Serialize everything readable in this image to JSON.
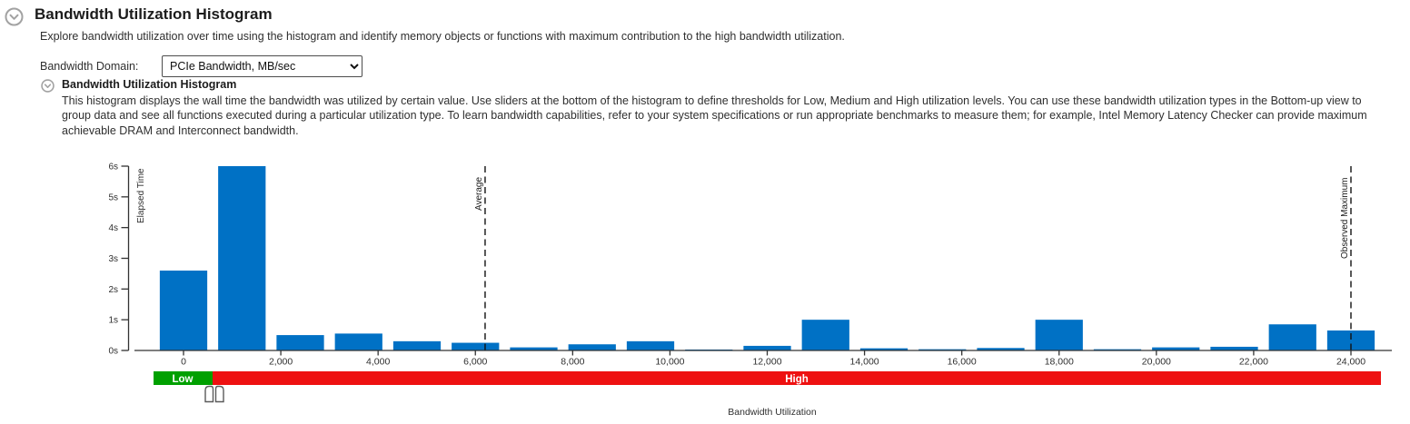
{
  "header": {
    "title": "Bandwidth Utilization Histogram",
    "subtitle": "Explore bandwidth utilization over time using the histogram and identify memory objects or functions with maximum contribution to the high bandwidth utilization."
  },
  "controls": {
    "bandwidth_domain_label": "Bandwidth Domain:",
    "bandwidth_domain_value": "PCIe Bandwidth, MB/sec"
  },
  "section": {
    "title": "Bandwidth Utilization Histogram",
    "description": "This histogram displays the wall time the bandwidth was utilized by certain value. Use sliders at the bottom of the histogram to define thresholds for Low, Medium and High utilization levels. You can use these bandwidth utilization types in the Bottom-up view to group data and see all functions executed during a particular utilization type. To learn bandwidth capabilities, refer to your system specifications or run appropriate benchmarks to measure them; for example, Intel Memory Latency Checker can provide maximum achievable DRAM and Interconnect bandwidth."
  },
  "icons": {
    "page_collapse": "chevron-down-circle-icon",
    "section_collapse": "chevron-down-circle-icon",
    "select_arrow": "chevron-down-icon"
  },
  "chart_data": {
    "type": "bar",
    "title": "Bandwidth Utilization Histogram",
    "xlabel": "Bandwidth Utilization",
    "ylabel": "Elapsed Time",
    "x_unit": "MB/sec",
    "bar_color": "#0071c5",
    "grid": false,
    "ylim": [
      0,
      6
    ],
    "xlim": [
      -1000,
      25000
    ],
    "bin_width": 1200,
    "bin_centers": [
      0,
      1200,
      2400,
      3600,
      4800,
      6000,
      7200,
      8400,
      9600,
      10800,
      12000,
      13200,
      14400,
      15600,
      16800,
      18000,
      19200,
      20400,
      21600,
      22800,
      24000
    ],
    "values_seconds": [
      2.6,
      6.0,
      0.5,
      0.55,
      0.3,
      0.25,
      0.1,
      0.2,
      0.3,
      0.03,
      0.15,
      1.0,
      0.07,
      0.04,
      0.08,
      1.0,
      0.04,
      0.1,
      0.12,
      0.85,
      0.65
    ],
    "y_tick_values": [
      0,
      1,
      2,
      3,
      4,
      5,
      6
    ],
    "y_tick_labels": [
      "0s",
      "1s",
      "2s",
      "3s",
      "4s",
      "5s",
      "6s"
    ],
    "x_tick_values": [
      0,
      2000,
      4000,
      6000,
      8000,
      10000,
      12000,
      14000,
      16000,
      18000,
      20000,
      22000,
      24000
    ],
    "x_tick_labels": [
      "0",
      "2,000",
      "4,000",
      "6,000",
      "8,000",
      "10,000",
      "12,000",
      "14,000",
      "16,000",
      "18,000",
      "20,000",
      "22,000",
      "24,000"
    ],
    "annotations": [
      {
        "label": "Average",
        "x": 6200
      },
      {
        "label": "Observed Maximum",
        "x": 24000
      }
    ]
  },
  "slider": {
    "low_label": "Low",
    "high_label": "High",
    "low_color": "#00a000",
    "high_color": "#ee1111",
    "low_threshold_approx": 600,
    "handle_count": 2
  }
}
